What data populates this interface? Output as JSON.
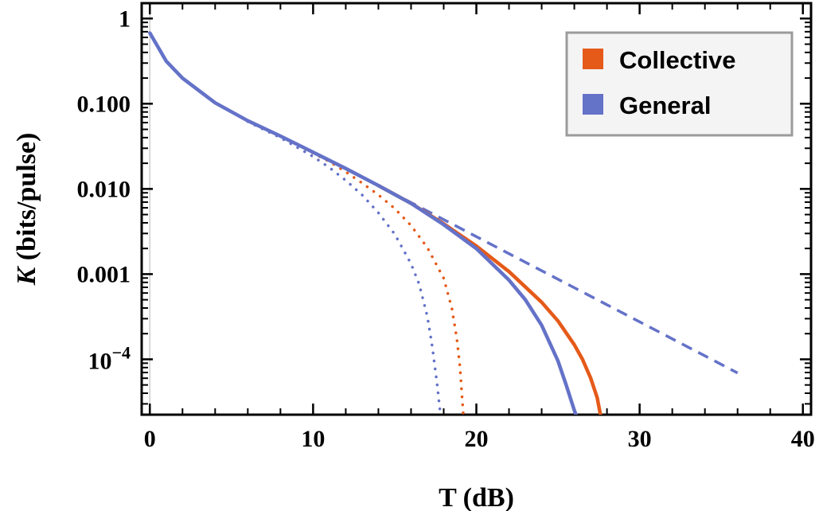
{
  "chart_data": {
    "type": "line",
    "xlabel": "T (dB)",
    "ylabel_italic": "K",
    "ylabel_rest": " (bits/pulse)",
    "xlim": [
      -0.5,
      40.5
    ],
    "ylim_log10": [
      -4.65,
      0.18
    ],
    "y_scale": "log",
    "x_ticks": [
      0,
      10,
      20,
      30,
      40
    ],
    "x_tick_labels": [
      "0",
      "10",
      "20",
      "30",
      "40"
    ],
    "y_ticks_log10": [
      0,
      -1,
      -2,
      -3
    ],
    "y_tick_labels": [
      "1",
      "0.100",
      "0.010",
      "0.001"
    ],
    "y_tick_special": {
      "log10": -4,
      "base": "10",
      "exponent": "−4"
    },
    "grid": false,
    "legend_position": "top-right",
    "colors": {
      "collective": "#e55a19",
      "general": "#6472c8"
    },
    "legend": [
      {
        "label": "Collective",
        "color": "#e55a19"
      },
      {
        "label": "General",
        "color": "#6472c8"
      }
    ],
    "series": [
      {
        "name": "General",
        "style": "solid",
        "color": "#6472c8",
        "x": [
          0,
          1,
          2,
          4,
          6,
          8,
          10,
          12,
          14,
          16,
          18,
          20,
          22,
          23,
          24,
          25,
          25.5,
          26,
          26.1
        ],
        "log10_y": [
          -0.17,
          -0.5,
          -0.7,
          -0.99,
          -1.2,
          -1.38,
          -1.57,
          -1.76,
          -1.96,
          -2.17,
          -2.42,
          -2.7,
          -3.07,
          -3.3,
          -3.6,
          -4.02,
          -4.3,
          -4.6,
          -4.65
        ]
      },
      {
        "name": "Collective",
        "style": "solid",
        "color": "#e55a19",
        "x": [
          14,
          16,
          18,
          20,
          22,
          24,
          25,
          26,
          26.5,
          27,
          27.4,
          27.6
        ],
        "log10_y": [
          -1.96,
          -2.17,
          -2.41,
          -2.67,
          -2.97,
          -3.33,
          -3.55,
          -3.83,
          -4.0,
          -4.22,
          -4.45,
          -4.65
        ]
      },
      {
        "name": "",
        "style": "dashed",
        "color": "#6472c8",
        "x": [
          0,
          1,
          2,
          4,
          6,
          8,
          10,
          12,
          14,
          16,
          18,
          20,
          22,
          24,
          26,
          28,
          30,
          32,
          34,
          36
        ],
        "log10_y": [
          -0.17,
          -0.5,
          -0.7,
          -0.99,
          -1.2,
          -1.38,
          -1.57,
          -1.76,
          -1.96,
          -2.16,
          -2.36,
          -2.56,
          -2.76,
          -2.96,
          -3.16,
          -3.36,
          -3.56,
          -3.76,
          -3.96,
          -4.16
        ]
      },
      {
        "name": "",
        "style": "dotted",
        "color": "#e55a19",
        "x": [
          6,
          8,
          10,
          11,
          12,
          13,
          14,
          15,
          16,
          17,
          18,
          18.5,
          18.8,
          19.0,
          19.2
        ],
        "log10_y": [
          -1.2,
          -1.38,
          -1.58,
          -1.68,
          -1.8,
          -1.93,
          -2.07,
          -2.23,
          -2.43,
          -2.69,
          -3.05,
          -3.4,
          -3.75,
          -4.1,
          -4.65
        ]
      },
      {
        "name": "",
        "style": "dotted",
        "color": "#6472c8",
        "x": [
          6,
          8,
          10,
          11,
          12,
          13,
          14,
          15,
          16,
          16.5,
          17,
          17.3,
          17.6,
          17.8
        ],
        "log10_y": [
          -1.21,
          -1.4,
          -1.62,
          -1.75,
          -1.9,
          -2.07,
          -2.28,
          -2.53,
          -2.88,
          -3.12,
          -3.5,
          -3.85,
          -4.3,
          -4.65
        ]
      }
    ]
  }
}
